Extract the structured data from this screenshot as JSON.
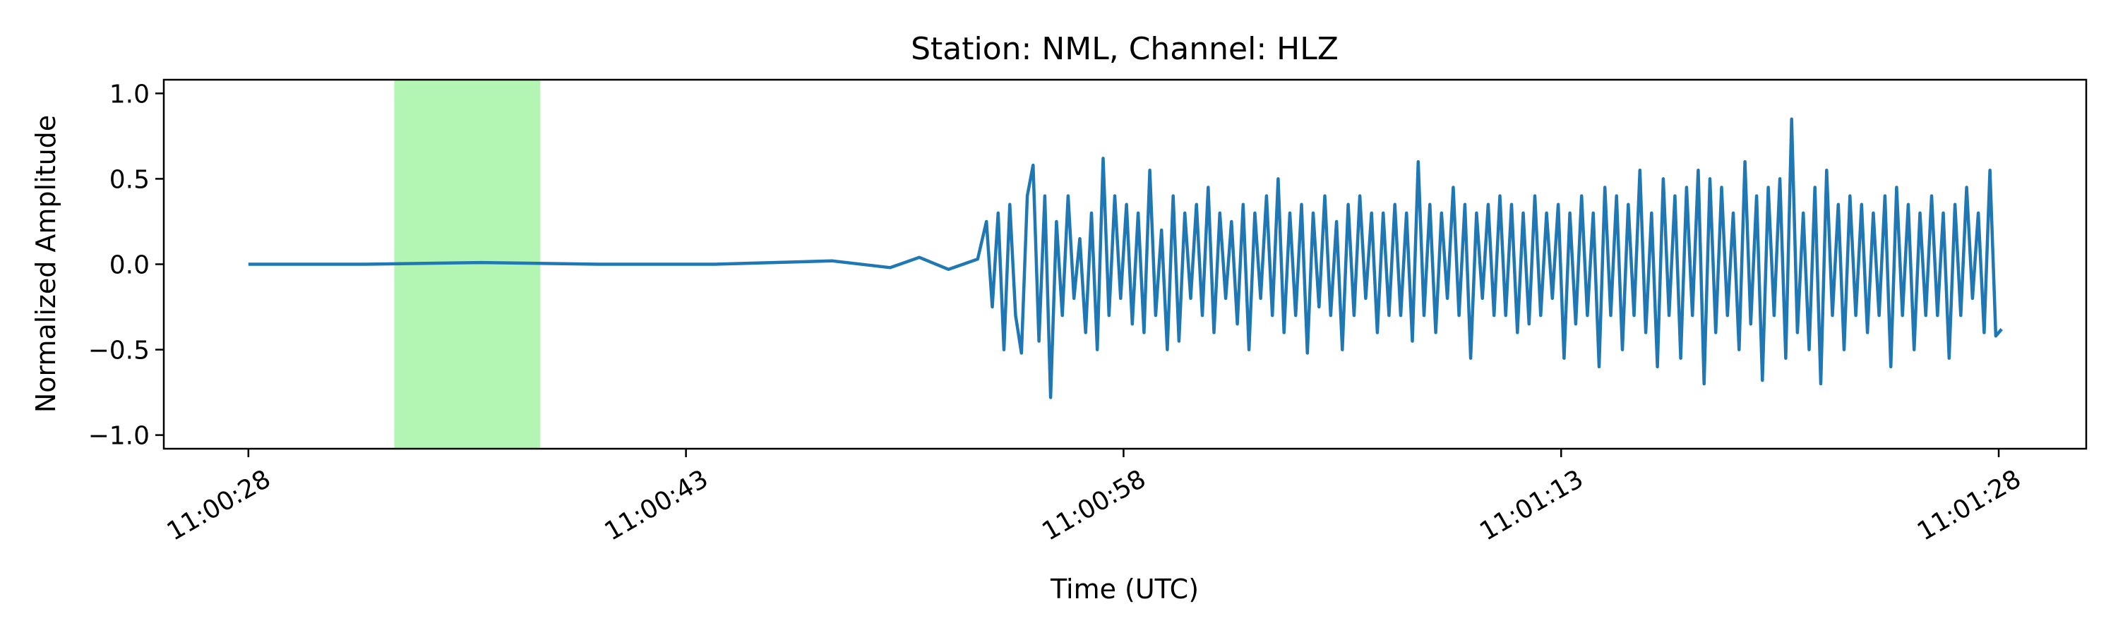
{
  "chart_data": {
    "type": "line",
    "title": "Station: NML, Channel: HLZ",
    "xlabel": "Time (UTC)",
    "ylabel": "Normalized Amplitude",
    "xlim_seconds_from_left_tick": [
      -2.9,
      63.0
    ],
    "ylim": [
      -1.08,
      1.08
    ],
    "grid": false,
    "x_ticks": [
      {
        "t": 0,
        "label": "11:00:28"
      },
      {
        "t": 15,
        "label": "11:00:43"
      },
      {
        "t": 30,
        "label": "11:00:58"
      },
      {
        "t": 45,
        "label": "11:01:13"
      },
      {
        "t": 60,
        "label": "11:01:28"
      }
    ],
    "y_ticks": [
      {
        "v": 1.0,
        "label": "1.0"
      },
      {
        "v": 0.5,
        "label": "0.5"
      },
      {
        "v": 0.0,
        "label": "0.0"
      },
      {
        "v": -0.5,
        "label": "−0.5"
      },
      {
        "v": -1.0,
        "label": "−1.0"
      }
    ],
    "highlight_window": {
      "start": 5.0,
      "end": 10.0,
      "color": "#b3f5b3"
    },
    "series": [
      {
        "color": "#1f77b4",
        "points": [
          [
            0.0,
            0.0
          ],
          [
            4.0,
            0.0
          ],
          [
            8.0,
            0.01
          ],
          [
            12.0,
            0.0
          ],
          [
            16.0,
            0.0
          ],
          [
            18.0,
            0.01
          ],
          [
            20.0,
            0.02
          ],
          [
            22.0,
            -0.02
          ],
          [
            23.0,
            0.04
          ],
          [
            24.0,
            -0.03
          ],
          [
            25.0,
            0.03
          ],
          [
            25.3,
            0.25
          ],
          [
            25.5,
            -0.25
          ],
          [
            25.7,
            0.3
          ],
          [
            25.9,
            -0.5
          ],
          [
            26.1,
            0.35
          ],
          [
            26.3,
            -0.3
          ],
          [
            26.5,
            -0.52
          ],
          [
            26.7,
            0.4
          ],
          [
            26.9,
            0.58
          ],
          [
            27.1,
            -0.45
          ],
          [
            27.3,
            0.4
          ],
          [
            27.5,
            -0.78
          ],
          [
            27.7,
            0.25
          ],
          [
            27.9,
            -0.3
          ],
          [
            28.1,
            0.4
          ],
          [
            28.3,
            -0.2
          ],
          [
            28.5,
            0.15
          ],
          [
            28.7,
            -0.4
          ],
          [
            28.9,
            0.3
          ],
          [
            29.1,
            -0.5
          ],
          [
            29.3,
            0.62
          ],
          [
            29.5,
            -0.3
          ],
          [
            29.7,
            0.4
          ],
          [
            29.9,
            -0.2
          ],
          [
            30.1,
            0.35
          ],
          [
            30.3,
            -0.35
          ],
          [
            30.5,
            0.3
          ],
          [
            30.7,
            -0.4
          ],
          [
            30.9,
            0.55
          ],
          [
            31.1,
            -0.3
          ],
          [
            31.3,
            0.2
          ],
          [
            31.5,
            -0.5
          ],
          [
            31.7,
            0.4
          ],
          [
            31.9,
            -0.45
          ],
          [
            32.1,
            0.3
          ],
          [
            32.3,
            -0.2
          ],
          [
            32.5,
            0.35
          ],
          [
            32.7,
            -0.3
          ],
          [
            32.9,
            0.45
          ],
          [
            33.1,
            -0.4
          ],
          [
            33.3,
            0.3
          ],
          [
            33.5,
            -0.2
          ],
          [
            33.7,
            0.25
          ],
          [
            33.9,
            -0.35
          ],
          [
            34.1,
            0.35
          ],
          [
            34.3,
            -0.5
          ],
          [
            34.5,
            0.3
          ],
          [
            34.7,
            -0.2
          ],
          [
            34.9,
            0.4
          ],
          [
            35.1,
            -0.3
          ],
          [
            35.3,
            0.5
          ],
          [
            35.5,
            -0.4
          ],
          [
            35.7,
            0.3
          ],
          [
            35.9,
            -0.3
          ],
          [
            36.1,
            0.35
          ],
          [
            36.3,
            -0.52
          ],
          [
            36.5,
            0.3
          ],
          [
            36.7,
            -0.25
          ],
          [
            36.9,
            0.4
          ],
          [
            37.1,
            -0.3
          ],
          [
            37.3,
            0.25
          ],
          [
            37.5,
            -0.5
          ],
          [
            37.7,
            0.35
          ],
          [
            37.9,
            -0.3
          ],
          [
            38.1,
            0.4
          ],
          [
            38.3,
            -0.2
          ],
          [
            38.5,
            0.3
          ],
          [
            38.7,
            -0.4
          ],
          [
            38.9,
            0.3
          ],
          [
            39.1,
            -0.3
          ],
          [
            39.3,
            0.35
          ],
          [
            39.5,
            -0.3
          ],
          [
            39.7,
            0.3
          ],
          [
            39.9,
            -0.45
          ],
          [
            40.1,
            0.6
          ],
          [
            40.3,
            -0.3
          ],
          [
            40.5,
            0.35
          ],
          [
            40.7,
            -0.4
          ],
          [
            40.9,
            0.3
          ],
          [
            41.1,
            -0.2
          ],
          [
            41.3,
            0.45
          ],
          [
            41.5,
            -0.3
          ],
          [
            41.7,
            0.35
          ],
          [
            41.9,
            -0.55
          ],
          [
            42.1,
            0.3
          ],
          [
            42.3,
            -0.2
          ],
          [
            42.5,
            0.35
          ],
          [
            42.7,
            -0.3
          ],
          [
            42.9,
            0.4
          ],
          [
            43.1,
            -0.3
          ],
          [
            43.3,
            0.35
          ],
          [
            43.5,
            -0.4
          ],
          [
            43.7,
            0.3
          ],
          [
            43.9,
            -0.35
          ],
          [
            44.1,
            0.4
          ],
          [
            44.3,
            -0.3
          ],
          [
            44.5,
            0.3
          ],
          [
            44.7,
            -0.2
          ],
          [
            44.9,
            0.35
          ],
          [
            45.1,
            -0.55
          ],
          [
            45.3,
            0.3
          ],
          [
            45.5,
            -0.35
          ],
          [
            45.7,
            0.4
          ],
          [
            45.9,
            -0.3
          ],
          [
            46.1,
            0.3
          ],
          [
            46.3,
            -0.6
          ],
          [
            46.5,
            0.45
          ],
          [
            46.7,
            -0.3
          ],
          [
            46.9,
            0.4
          ],
          [
            47.1,
            -0.5
          ],
          [
            47.3,
            0.35
          ],
          [
            47.5,
            -0.3
          ],
          [
            47.7,
            0.55
          ],
          [
            47.9,
            -0.4
          ],
          [
            48.1,
            0.3
          ],
          [
            48.3,
            -0.6
          ],
          [
            48.5,
            0.5
          ],
          [
            48.7,
            -0.3
          ],
          [
            48.9,
            0.4
          ],
          [
            49.1,
            -0.55
          ],
          [
            49.3,
            0.45
          ],
          [
            49.5,
            -0.3
          ],
          [
            49.7,
            0.55
          ],
          [
            49.9,
            -0.7
          ],
          [
            50.1,
            0.5
          ],
          [
            50.3,
            -0.4
          ],
          [
            50.5,
            0.45
          ],
          [
            50.7,
            -0.3
          ],
          [
            50.9,
            0.3
          ],
          [
            51.1,
            -0.5
          ],
          [
            51.3,
            0.6
          ],
          [
            51.5,
            -0.35
          ],
          [
            51.7,
            0.4
          ],
          [
            51.9,
            -0.68
          ],
          [
            52.1,
            0.45
          ],
          [
            52.3,
            -0.3
          ],
          [
            52.5,
            0.5
          ],
          [
            52.7,
            -0.55
          ],
          [
            52.9,
            0.85
          ],
          [
            53.1,
            -0.4
          ],
          [
            53.3,
            0.3
          ],
          [
            53.5,
            -0.5
          ],
          [
            53.7,
            0.45
          ],
          [
            53.9,
            -0.7
          ],
          [
            54.1,
            0.55
          ],
          [
            54.3,
            -0.3
          ],
          [
            54.5,
            0.35
          ],
          [
            54.7,
            -0.5
          ],
          [
            54.9,
            0.4
          ],
          [
            55.1,
            -0.3
          ],
          [
            55.3,
            0.35
          ],
          [
            55.5,
            -0.4
          ],
          [
            55.7,
            0.3
          ],
          [
            55.9,
            -0.3
          ],
          [
            56.1,
            0.4
          ],
          [
            56.3,
            -0.6
          ],
          [
            56.5,
            0.45
          ],
          [
            56.7,
            -0.3
          ],
          [
            56.9,
            0.35
          ],
          [
            57.1,
            -0.5
          ],
          [
            57.3,
            0.3
          ],
          [
            57.5,
            -0.3
          ],
          [
            57.7,
            0.4
          ],
          [
            57.9,
            -0.3
          ],
          [
            58.1,
            0.3
          ],
          [
            58.3,
            -0.55
          ],
          [
            58.5,
            0.35
          ],
          [
            58.7,
            -0.3
          ],
          [
            58.9,
            0.45
          ],
          [
            59.1,
            -0.2
          ],
          [
            59.3,
            0.3
          ],
          [
            59.5,
            -0.4
          ],
          [
            59.7,
            0.55
          ],
          [
            59.9,
            -0.42
          ],
          [
            60.1,
            -0.38
          ]
        ]
      }
    ]
  }
}
